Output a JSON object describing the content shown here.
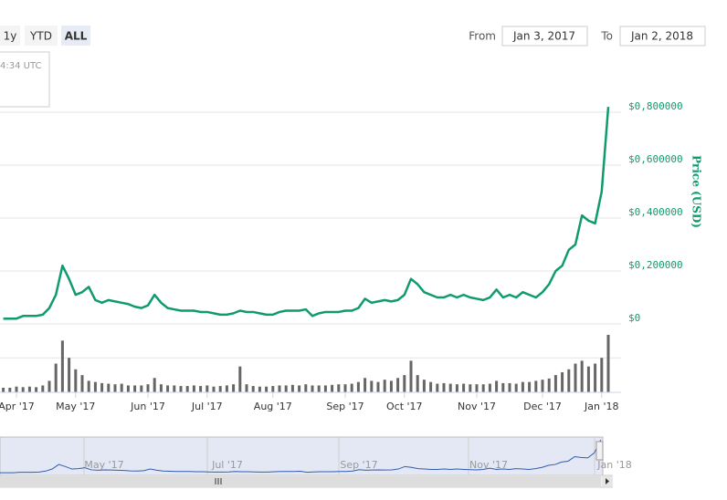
{
  "ui": {
    "zoom_buttons": [
      "1y",
      "YTD",
      "ALL"
    ],
    "from_label": "From",
    "from_value": "Jan 3, 2017",
    "to_label": "To",
    "to_value": "Jan 2, 2018",
    "tooltip_fragment": "4:34 UTC"
  },
  "chart_data": {
    "type": "line",
    "y_axis_label": "Price (USD)",
    "categories": [
      null,
      null,
      "Apr '17",
      null,
      null,
      null,
      null,
      null,
      null,
      null,
      null,
      "May '17",
      null,
      null,
      null,
      null,
      null,
      null,
      null,
      null,
      null,
      null,
      "Jun '17",
      null,
      null,
      null,
      null,
      null,
      null,
      null,
      null,
      "Jul '17",
      null,
      null,
      null,
      null,
      null,
      null,
      null,
      null,
      null,
      "Aug '17",
      null,
      null,
      null,
      null,
      null,
      null,
      null,
      null,
      null,
      null,
      "Sep '17",
      null,
      null,
      null,
      null,
      null,
      null,
      null,
      null,
      "Oct '17",
      null,
      null,
      null,
      null,
      null,
      null,
      null,
      null,
      null,
      null,
      "Nov '17",
      null,
      null,
      null,
      null,
      null,
      null,
      null,
      null,
      null,
      "Dec '17",
      null,
      null,
      null,
      null,
      null,
      null,
      null,
      null,
      "Jan '18",
      null
    ],
    "series": [
      {
        "name": "Price",
        "color": "#109a6f",
        "values": [
          0.02,
          0.02,
          0.02,
          0.03,
          0.03,
          0.03,
          0.035,
          0.06,
          0.11,
          0.22,
          0.17,
          0.11,
          0.12,
          0.14,
          0.09,
          0.08,
          0.09,
          0.085,
          0.08,
          0.075,
          0.065,
          0.06,
          0.07,
          0.11,
          0.08,
          0.06,
          0.055,
          0.05,
          0.05,
          0.05,
          0.045,
          0.045,
          0.04,
          0.035,
          0.035,
          0.04,
          0.05,
          0.045,
          0.045,
          0.04,
          0.035,
          0.035,
          0.045,
          0.05,
          0.05,
          0.05,
          0.055,
          0.03,
          0.04,
          0.045,
          0.045,
          0.045,
          0.05,
          0.05,
          0.06,
          0.095,
          0.08,
          0.085,
          0.09,
          0.085,
          0.09,
          0.11,
          0.17,
          0.15,
          0.12,
          0.11,
          0.1,
          0.1,
          0.11,
          0.1,
          0.11,
          0.1,
          0.095,
          0.09,
          0.1,
          0.13,
          0.1,
          0.11,
          0.1,
          0.12,
          0.11,
          0.1,
          0.12,
          0.15,
          0.2,
          0.22,
          0.28,
          0.3,
          0.41,
          0.39,
          0.38,
          0.5,
          0.82
        ]
      }
    ],
    "ylim": [
      0,
      0.8
    ],
    "yticks": [
      {
        "value": 0,
        "label": "$0"
      },
      {
        "value": 0.2,
        "label": "$0,200000"
      },
      {
        "value": 0.4,
        "label": "$0,400000"
      },
      {
        "value": 0.6,
        "label": "$0,600000"
      },
      {
        "value": 0.8,
        "label": "$0,800000"
      }
    ],
    "grid": true,
    "volume": {
      "color": "#666666",
      "ylim": [
        0,
        100
      ],
      "yticks": [
        0,
        60
      ],
      "values": [
        8,
        8,
        10,
        9,
        10,
        9,
        12,
        20,
        50,
        90,
        60,
        40,
        30,
        20,
        18,
        16,
        15,
        14,
        15,
        12,
        12,
        12,
        14,
        25,
        14,
        12,
        12,
        11,
        11,
        12,
        11,
        12,
        10,
        11,
        12,
        14,
        45,
        14,
        11,
        10,
        10,
        11,
        12,
        12,
        13,
        12,
        14,
        12,
        12,
        12,
        13,
        14,
        14,
        15,
        18,
        25,
        20,
        18,
        22,
        20,
        25,
        30,
        55,
        30,
        22,
        18,
        15,
        16,
        15,
        14,
        15,
        14,
        14,
        14,
        15,
        20,
        16,
        16,
        15,
        18,
        18,
        20,
        22,
        24,
        30,
        35,
        40,
        50,
        55,
        45,
        50,
        60,
        100
      ]
    },
    "navigator": {
      "labels": [
        "May '17",
        "Jul '17",
        "Sep '17",
        "Nov '17",
        "Jan '18"
      ]
    }
  }
}
